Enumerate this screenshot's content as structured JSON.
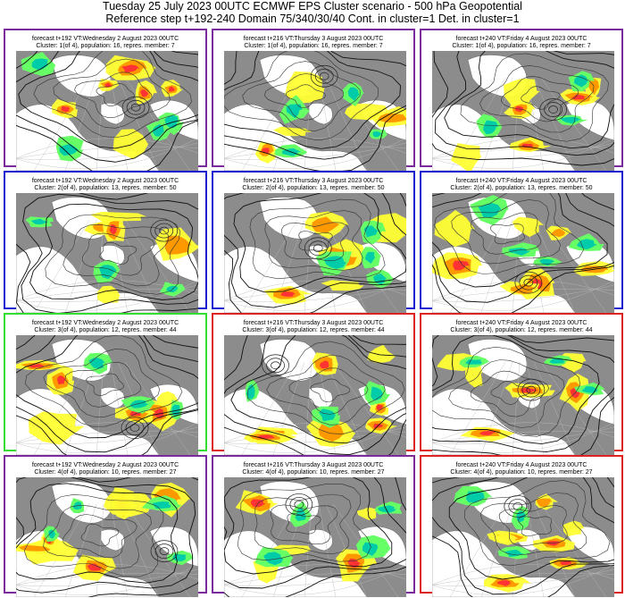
{
  "header": {
    "line1": "Tuesday 25 July 2023 00UTC ECMWF EPS Cluster scenario - 500 hPa Geopotential",
    "line2": "Reference step t+192-240 Domain 75/340/30/40 Cont. in cluster=1 Det. in cluster=1"
  },
  "colors": {
    "purple": "#7b2a9c",
    "blue": "#1a1ad0",
    "green": "#33dd33",
    "red": "#dd2222",
    "land": "#8c8c8c",
    "sea": "#ffffff",
    "positive_anomaly": [
      "#ffff33",
      "#ff9900",
      "#ff3333"
    ],
    "negative_anomaly": [
      "#66ff66",
      "#00ccaa"
    ]
  },
  "panels": [
    {
      "row": 0,
      "col": 0,
      "border": "purple",
      "line1": "forecast t+192 VT:Wednesday 2 August 2023 00UTC",
      "line2": "Cluster: 1(of 4), population: 16, repres. member: 7"
    },
    {
      "row": 0,
      "col": 1,
      "border": "purple",
      "line1": "forecast t+216 VT:Thursday 3 August 2023 00UTC",
      "line2": "Cluster: 1(of 4), population: 16, repres. member: 7"
    },
    {
      "row": 0,
      "col": 2,
      "border": "purple",
      "line1": "forecast t+240 VT:Friday 4 August 2023 00UTC",
      "line2": "Cluster: 1(of 4), population: 16, repres. member: 7"
    },
    {
      "row": 1,
      "col": 0,
      "border": "blue",
      "line1": "forecast t+192 VT:Wednesday 2 August 2023 00UTC",
      "line2": "Cluster: 2(of 4), population: 13, repres. member: 50"
    },
    {
      "row": 1,
      "col": 1,
      "border": "blue",
      "line1": "forecast t+216 VT:Thursday 3 August 2023 00UTC",
      "line2": "Cluster: 2(of 4), population: 13, repres. member: 50"
    },
    {
      "row": 1,
      "col": 2,
      "border": "blue",
      "line1": "forecast t+240 VT:Friday 4 August 2023 00UTC",
      "line2": "Cluster: 2(of 4), population: 13, repres. member: 50"
    },
    {
      "row": 2,
      "col": 0,
      "border": "green",
      "line1": "forecast t+192 VT:Wednesday 2 August 2023 00UTC",
      "line2": "Cluster: 3(of 4), population: 12, repres. member: 44"
    },
    {
      "row": 2,
      "col": 1,
      "border": "red",
      "line1": "forecast t+216 VT:Thursday 3 August 2023 00UTC",
      "line2": "Cluster: 3(of 4), population: 12, repres. member: 44"
    },
    {
      "row": 2,
      "col": 2,
      "border": "red",
      "line1": "forecast t+240 VT:Friday 4 August 2023 00UTC",
      "line2": "Cluster: 3(of 4), population: 12, repres. member: 44"
    },
    {
      "row": 3,
      "col": 0,
      "border": "purple",
      "line1": "forecast t+192 VT:Wednesday 2 August 2023 00UTC",
      "line2": "Cluster: 4(of 4), population: 10, repres. member: 27"
    },
    {
      "row": 3,
      "col": 1,
      "border": "purple",
      "line1": "forecast t+216 VT:Thursday 3 August 2023 00UTC",
      "line2": "Cluster: 4(of 4), population: 10, repres. member: 27"
    },
    {
      "row": 3,
      "col": 2,
      "border": "red",
      "line1": "forecast t+240 VT:Friday 4 August 2023 00UTC",
      "line2": "Cluster: 4(of 4), population: 10, repres. member: 27"
    }
  ]
}
